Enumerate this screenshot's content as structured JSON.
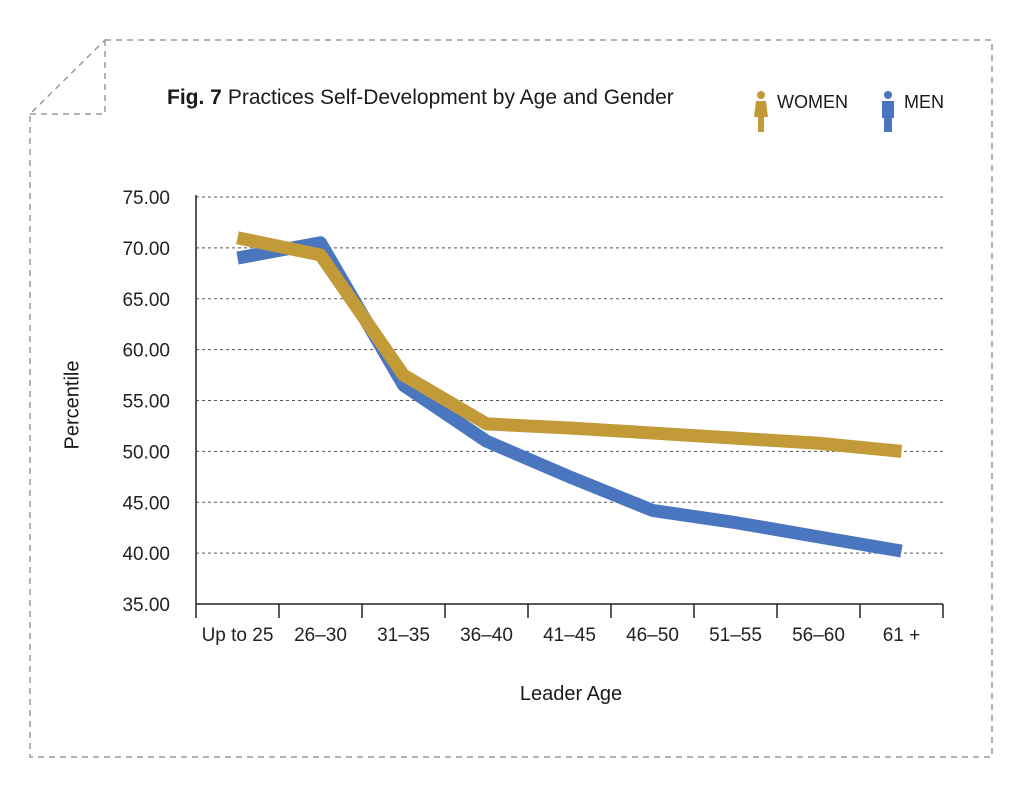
{
  "figure": {
    "number": "Fig. 7",
    "title": "Practices Self-Development by Age and Gender"
  },
  "legend": [
    {
      "label": "WOMEN",
      "icon": "woman-icon",
      "color": "#C29A37"
    },
    {
      "label": "MEN",
      "icon": "man-icon",
      "color": "#4A76C0"
    }
  ],
  "chart_data": {
    "type": "line",
    "title": "Practices Self-Development by Age and Gender",
    "xlabel": "Leader Age",
    "ylabel": "Percentile",
    "categories": [
      "Up to 25",
      "26–30",
      "31–35",
      "36–40",
      "41–45",
      "46–50",
      "51–55",
      "56–60",
      "61 +"
    ],
    "ylim": [
      35,
      75
    ],
    "yticks": [
      "35.00",
      "40.00",
      "45.00",
      "50.00",
      "55.00",
      "60.00",
      "65.00",
      "70.00",
      "75.00"
    ],
    "grid": true,
    "legend_position": "top-right",
    "series": [
      {
        "name": "MEN",
        "color": "#4A76C0",
        "values": [
          69.0,
          70.5,
          56.5,
          51.0,
          47.5,
          44.2,
          43.0,
          41.6,
          40.2
        ]
      },
      {
        "name": "WOMEN",
        "color": "#C29A37",
        "values": [
          71.0,
          69.3,
          57.5,
          52.7,
          52.3,
          51.8,
          51.3,
          50.8,
          50.0
        ]
      }
    ]
  }
}
